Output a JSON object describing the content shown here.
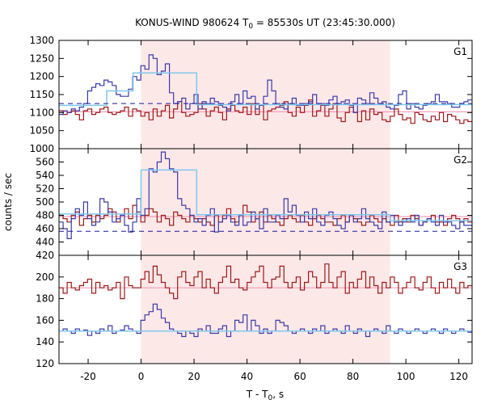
{
  "chart_data": {
    "type": "line",
    "title_main": "KONUS-WIND 980624 T",
    "title_sub": "0",
    "title_rest": " = 85530s UT (23:45:30.000)",
    "xlabel_main": "T - T",
    "xlabel_sub": "0",
    "xlabel_rest": ", s",
    "ylabel": "counts / sec",
    "xlim": [
      -31,
      125
    ],
    "x_ticks": [
      -20,
      0,
      20,
      40,
      60,
      80,
      100,
      120
    ],
    "x_tick_labels": [
      "-20",
      "0",
      "20",
      "40",
      "60",
      "80",
      "100",
      "120"
    ],
    "shaded_interval": [
      0,
      94
    ],
    "colors": {
      "blue": "#3a3aa8",
      "red": "#a01818",
      "cyan": "#7ec8ee",
      "pink": "#f0a0bc",
      "navy_dash": "#1a1a9a",
      "shade": "#fde8e8"
    },
    "panels": [
      {
        "label": "G1",
        "ylim": [
          1000,
          1300
        ],
        "yticks": [
          1000,
          1050,
          1100,
          1150,
          1200,
          1250,
          1300
        ],
        "ytick_labels": [
          "1000",
          "1050",
          "1100",
          "1150",
          "1200",
          "1250",
          "1300"
        ],
        "blue": [
          1095,
          1105,
          1100,
          1110,
          1105,
          1115,
          1125,
          1160,
          1170,
          1180,
          1175,
          1190,
          1185,
          1175,
          1150,
          1145,
          1145,
          1165,
          1200,
          1190,
          1230,
          1220,
          1260,
          1250,
          1205,
          1215,
          1235,
          1155,
          1125,
          1130,
          1140,
          1110,
          1125,
          1150,
          1110,
          1130,
          1125,
          1140,
          1130,
          1120,
          1115,
          1105,
          1130,
          1150,
          1125,
          1160,
          1140,
          1145,
          1110,
          1120,
          1145,
          1190,
          1160,
          1125,
          1115,
          1110,
          1125,
          1140,
          1120,
          1120,
          1125,
          1130,
          1150,
          1125,
          1125,
          1120,
          1135,
          1145,
          1125,
          1130,
          1135,
          1120,
          1100,
          1140,
          1135,
          1125,
          1155,
          1140,
          1125,
          1130,
          1115,
          1110,
          1120,
          1150,
          1160,
          1110,
          1125,
          1115,
          1110,
          1120,
          1125,
          1130,
          1150,
          1130,
          1130,
          1125,
          1115,
          1115,
          1125,
          1130,
          1135
        ],
        "red": [
          1105,
          1095,
          1100,
          1105,
          1095,
          1080,
          1105,
          1110,
          1095,
          1100,
          1110,
          1115,
          1100,
          1095,
          1100,
          1105,
          1115,
          1090,
          1110,
          1105,
          1090,
          1100,
          1080,
          1110,
          1090,
          1105,
          1120,
          1085,
          1110,
          1130,
          1100,
          1090,
          1095,
          1100,
          1125,
          1110,
          1090,
          1105,
          1115,
          1100,
          1080,
          1110,
          1120,
          1105,
          1100,
          1115,
          1095,
          1125,
          1095,
          1120,
          1080,
          1105,
          1110,
          1115,
          1120,
          1130,
          1100,
          1090,
          1115,
          1100,
          1120,
          1135,
          1090,
          1105,
          1120,
          1090,
          1110,
          1125,
          1085,
          1075,
          1100,
          1115,
          1100,
          1075,
          1105,
          1080,
          1110,
          1095,
          1100,
          1080,
          1075,
          1090,
          1110,
          1095,
          1080,
          1085,
          1070,
          1100,
          1095,
          1080,
          1075,
          1090,
          1080,
          1100,
          1075,
          1095,
          1090,
          1080,
          1070,
          1080,
          1075
        ],
        "cyan_steps": [
          [
            -31,
            -13,
            1120
          ],
          [
            -13,
            -3,
            1160
          ],
          [
            -3,
            21,
            1210
          ],
          [
            21,
            125,
            1122
          ]
        ],
        "pink_steps": [
          [
            -31,
            125,
            1102
          ]
        ],
        "dashed_level": 1125
      },
      {
        "label": "G2",
        "ylim": [
          420,
          580
        ],
        "yticks": [
          420,
          440,
          460,
          480,
          500,
          520,
          540,
          560
        ],
        "ytick_labels": [
          "420",
          "440",
          "460",
          "480",
          "500",
          "520",
          "540",
          "560"
        ],
        "blue": [
          470,
          460,
          445,
          475,
          490,
          480,
          500,
          475,
          465,
          470,
          505,
          500,
          485,
          470,
          475,
          480,
          465,
          455,
          470,
          505,
          480,
          490,
          550,
          545,
          560,
          575,
          565,
          550,
          545,
          505,
          495,
          490,
          480,
          470,
          475,
          465,
          480,
          490,
          455,
          470,
          475,
          480,
          470,
          465,
          480,
          465,
          470,
          485,
          475,
          460,
          490,
          470,
          470,
          480,
          475,
          505,
          485,
          495,
          480,
          470,
          485,
          475,
          490,
          470,
          465,
          480,
          485,
          475,
          465,
          460,
          470,
          480,
          470,
          475,
          490,
          475,
          470,
          465,
          460,
          485,
          470,
          480,
          470,
          465,
          470,
          475,
          470,
          480,
          465,
          470,
          475,
          470,
          465,
          480,
          470,
          470,
          465,
          460,
          470,
          465,
          465
        ],
        "red": [
          480,
          475,
          470,
          480,
          485,
          465,
          475,
          480,
          470,
          480,
          475,
          480,
          490,
          485,
          470,
          480,
          490,
          475,
          495,
          485,
          470,
          480,
          490,
          485,
          470,
          480,
          475,
          465,
          485,
          480,
          475,
          470,
          480,
          475,
          470,
          475,
          470,
          465,
          480,
          470,
          480,
          490,
          475,
          470,
          480,
          495,
          485,
          470,
          475,
          485,
          470,
          480,
          475,
          470,
          465,
          475,
          480,
          475,
          470,
          480,
          470,
          465,
          475,
          480,
          475,
          470,
          470,
          465,
          475,
          480,
          470,
          480,
          475,
          470,
          465,
          470,
          480,
          475,
          470,
          475,
          470,
          465,
          480,
          470,
          475,
          470,
          480,
          475,
          465,
          470,
          475,
          480,
          470,
          470,
          465,
          475,
          480,
          475,
          470,
          475,
          470
        ],
        "cyan_steps": [
          [
            -31,
            0,
            482
          ],
          [
            0,
            21,
            548
          ],
          [
            21,
            94,
            481
          ],
          [
            94,
            125,
            472
          ]
        ],
        "pink_steps": [
          [
            -31,
            125,
            478
          ]
        ],
        "dashed_level": 456
      },
      {
        "label": "G3",
        "ylim": [
          120,
          220
        ],
        "yticks": [
          120,
          140,
          160,
          180,
          200
        ],
        "ytick_labels": [
          "120",
          "140",
          "160",
          "180",
          "200"
        ],
        "blue": [
          150,
          152,
          150,
          148,
          152,
          150,
          151,
          146,
          150,
          148,
          152,
          150,
          155,
          148,
          150,
          151,
          155,
          152,
          150,
          148,
          160,
          165,
          168,
          175,
          170,
          162,
          158,
          152,
          150,
          148,
          145,
          150,
          148,
          145,
          152,
          150,
          155,
          148,
          148,
          152,
          155,
          145,
          150,
          160,
          158,
          165,
          150,
          160,
          155,
          148,
          152,
          148,
          150,
          160,
          158,
          155,
          150,
          148,
          150,
          152,
          150,
          148,
          152,
          150,
          155,
          148,
          150,
          152,
          150,
          148,
          155,
          150,
          148,
          152,
          150,
          145,
          150,
          152,
          150,
          148,
          155,
          150,
          148,
          152,
          150,
          148,
          150,
          152,
          150,
          148,
          150,
          152,
          150,
          148,
          152,
          150,
          148,
          150,
          152,
          150,
          149
        ],
        "red": [
          190,
          185,
          195,
          190,
          188,
          192,
          195,
          198,
          185,
          195,
          190,
          192,
          188,
          190,
          195,
          180,
          200,
          192,
          190,
          190,
          198,
          205,
          195,
          210,
          202,
          195,
          190,
          185,
          180,
          200,
          205,
          195,
          192,
          200,
          205,
          190,
          198,
          190,
          185,
          195,
          200,
          210,
          195,
          198,
          190,
          188,
          195,
          200,
          205,
          210,
          195,
          190,
          198,
          200,
          210,
          195,
          190,
          195,
          200,
          188,
          195,
          205,
          200,
          190,
          195,
          212,
          195,
          190,
          200,
          205,
          185,
          195,
          190,
          198,
          205,
          190,
          200,
          192,
          185,
          195,
          190,
          200,
          195,
          185,
          190,
          195,
          200,
          190,
          188,
          195,
          200,
          190,
          185,
          195,
          190,
          198,
          190,
          185,
          195,
          190,
          192
        ],
        "cyan_steps": [
          [
            -31,
            125,
            150
          ]
        ],
        "pink_steps": [
          [
            -31,
            125,
            190
          ]
        ],
        "dashed_level": null
      }
    ]
  }
}
